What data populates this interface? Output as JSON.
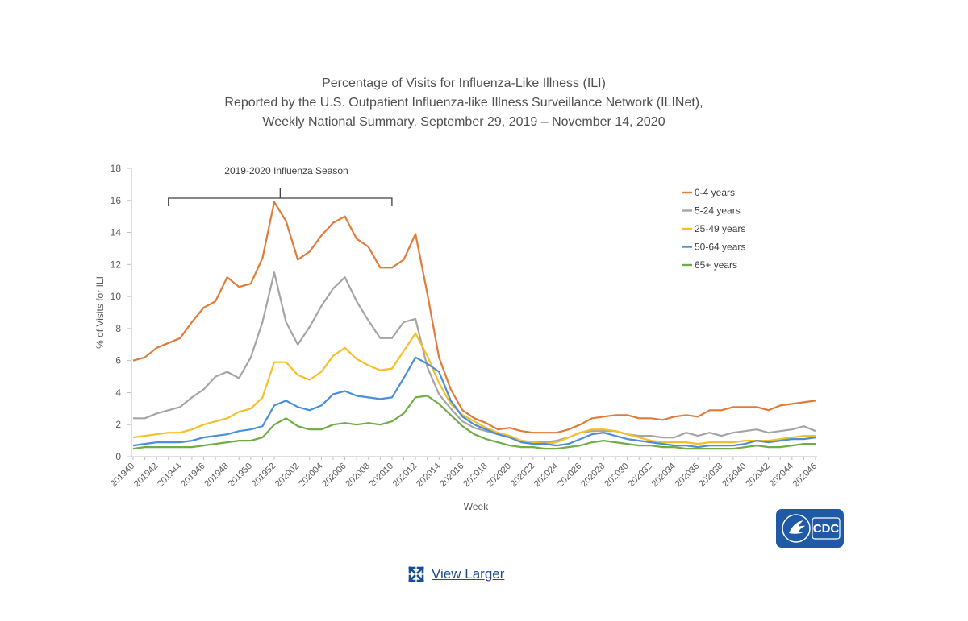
{
  "chart_data": {
    "type": "line",
    "title": [
      "Percentage of Visits for Influenza-Like Illness (ILI)",
      "Reported by the U.S. Outpatient Influenza-like Illness Surveillance Network (ILINet),",
      "Weekly National Summary, September 29, 2019 – November 14, 2020"
    ],
    "xlabel": "Week",
    "ylabel": "% of Visits for ILI",
    "ylim": [
      0,
      18
    ],
    "yticks": [
      0,
      2,
      4,
      6,
      8,
      10,
      12,
      14,
      16,
      18
    ],
    "grid": false,
    "legend_position": "top-right",
    "x": [
      "201940",
      "201941",
      "201942",
      "201943",
      "201944",
      "201945",
      "201946",
      "201947",
      "201948",
      "201949",
      "201950",
      "201951",
      "201952",
      "202001",
      "202002",
      "202003",
      "202004",
      "202005",
      "202006",
      "202007",
      "202008",
      "202009",
      "202010",
      "202011",
      "202012",
      "202013",
      "202014",
      "202015",
      "202016",
      "202017",
      "202018",
      "202019",
      "202020",
      "202021",
      "202022",
      "202023",
      "202024",
      "202025",
      "202026",
      "202027",
      "202028",
      "202029",
      "202030",
      "202031",
      "202032",
      "202033",
      "202034",
      "202035",
      "202036",
      "202037",
      "202038",
      "202039",
      "202040",
      "202041",
      "202042",
      "202043",
      "202044",
      "202045",
      "202046"
    ],
    "xtick_labels": [
      "201940",
      "201942",
      "201944",
      "201946",
      "201948",
      "201950",
      "201952",
      "202002",
      "202004",
      "202006",
      "202008",
      "202010",
      "202012",
      "202014",
      "202016",
      "202018",
      "202020",
      "202022",
      "202024",
      "202026",
      "202028",
      "202030",
      "202032",
      "202034",
      "202036",
      "202038",
      "202040",
      "202042",
      "202044",
      "202046"
    ],
    "series": [
      {
        "name": "0-4 years",
        "color": "#e07b39",
        "values": [
          6.0,
          6.2,
          6.8,
          7.1,
          7.4,
          8.4,
          9.3,
          9.7,
          11.2,
          10.6,
          10.8,
          12.4,
          15.9,
          14.7,
          12.3,
          12.8,
          13.8,
          14.6,
          15.0,
          13.6,
          13.1,
          11.8,
          11.8,
          12.3,
          13.9,
          10.2,
          6.2,
          4.2,
          2.9,
          2.4,
          2.1,
          1.7,
          1.8,
          1.6,
          1.5,
          1.5,
          1.5,
          1.7,
          2.0,
          2.4,
          2.5,
          2.6,
          2.6,
          2.4,
          2.4,
          2.3,
          2.5,
          2.6,
          2.5,
          2.9,
          2.9,
          3.1,
          3.1,
          3.1,
          2.9,
          3.2,
          3.3,
          3.4,
          3.5
        ]
      },
      {
        "name": "5-24 years",
        "color": "#a5a5a5",
        "values": [
          2.4,
          2.4,
          2.7,
          2.9,
          3.1,
          3.7,
          4.2,
          5.0,
          5.3,
          4.9,
          6.2,
          8.4,
          11.5,
          8.4,
          7.0,
          8.1,
          9.4,
          10.5,
          11.2,
          9.7,
          8.5,
          7.4,
          7.4,
          8.4,
          8.6,
          5.6,
          3.9,
          3.0,
          2.2,
          1.8,
          1.6,
          1.4,
          1.2,
          1.0,
          0.9,
          0.9,
          1.0,
          1.2,
          1.5,
          1.6,
          1.6,
          1.6,
          1.4,
          1.3,
          1.3,
          1.2,
          1.2,
          1.5,
          1.3,
          1.5,
          1.3,
          1.5,
          1.6,
          1.7,
          1.5,
          1.6,
          1.7,
          1.9,
          1.6
        ]
      },
      {
        "name": "25-49 years",
        "color": "#f5c026",
        "values": [
          1.2,
          1.3,
          1.4,
          1.5,
          1.5,
          1.7,
          2.0,
          2.2,
          2.4,
          2.8,
          3.0,
          3.7,
          5.9,
          5.9,
          5.1,
          4.8,
          5.3,
          6.3,
          6.8,
          6.1,
          5.7,
          5.4,
          5.5,
          6.6,
          7.7,
          6.3,
          4.6,
          3.3,
          2.6,
          2.2,
          1.8,
          1.5,
          1.3,
          1.0,
          0.9,
          0.8,
          0.9,
          1.2,
          1.5,
          1.7,
          1.7,
          1.6,
          1.4,
          1.2,
          1.0,
          0.9,
          0.9,
          0.9,
          0.8,
          0.9,
          0.9,
          0.9,
          1.0,
          1.0,
          1.0,
          1.1,
          1.2,
          1.3,
          1.3
        ]
      },
      {
        "name": "50-64 years",
        "color": "#4b8fd6",
        "values": [
          0.7,
          0.8,
          0.9,
          0.9,
          0.9,
          1.0,
          1.2,
          1.3,
          1.4,
          1.6,
          1.7,
          1.9,
          3.2,
          3.5,
          3.1,
          2.9,
          3.2,
          3.9,
          4.1,
          3.8,
          3.7,
          3.6,
          3.7,
          4.9,
          6.2,
          5.8,
          5.3,
          3.5,
          2.5,
          2.0,
          1.7,
          1.4,
          1.2,
          0.9,
          0.8,
          0.8,
          0.7,
          0.8,
          1.1,
          1.4,
          1.5,
          1.3,
          1.1,
          1.0,
          0.9,
          0.8,
          0.7,
          0.7,
          0.6,
          0.7,
          0.7,
          0.7,
          0.8,
          1.0,
          0.9,
          1.0,
          1.1,
          1.1,
          1.2
        ]
      },
      {
        "name": "65+ years",
        "color": "#70ad47",
        "values": [
          0.5,
          0.6,
          0.6,
          0.6,
          0.6,
          0.6,
          0.7,
          0.8,
          0.9,
          1.0,
          1.0,
          1.2,
          2.0,
          2.4,
          1.9,
          1.7,
          1.7,
          2.0,
          2.1,
          2.0,
          2.1,
          2.0,
          2.2,
          2.7,
          3.7,
          3.8,
          3.3,
          2.6,
          1.9,
          1.4,
          1.1,
          0.9,
          0.7,
          0.6,
          0.6,
          0.5,
          0.5,
          0.6,
          0.7,
          0.9,
          1.0,
          0.9,
          0.8,
          0.7,
          0.7,
          0.6,
          0.6,
          0.5,
          0.5,
          0.5,
          0.5,
          0.5,
          0.6,
          0.7,
          0.6,
          0.6,
          0.7,
          0.8,
          0.8
        ]
      }
    ],
    "annotations": [
      {
        "text": "2019-2020 Influenza Season",
        "bracket_from": "201943",
        "bracket_to": "202010"
      }
    ]
  },
  "logo": {
    "text": "CDC",
    "color": "#1f5aa6"
  },
  "view_larger": {
    "label": "View Larger",
    "icon": "expand-icon",
    "color": "#1a4d8f"
  }
}
